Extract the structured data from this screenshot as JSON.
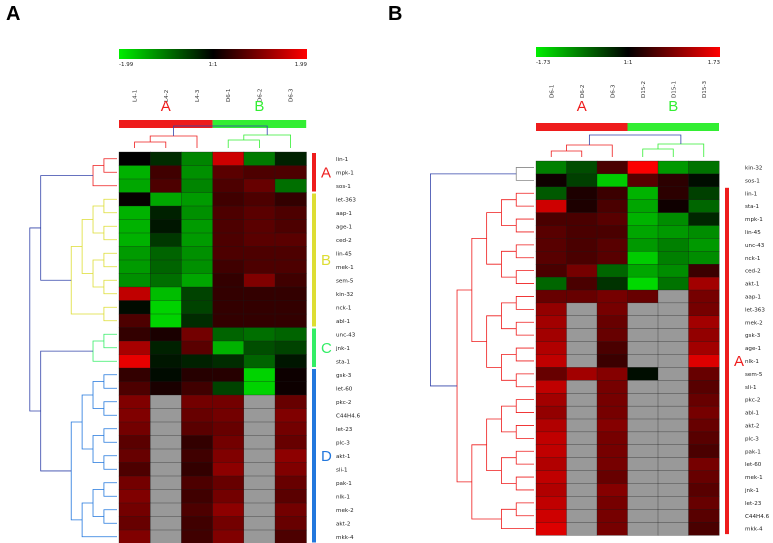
{
  "chart_data": [
    {
      "type": "heatmap",
      "panel": "A",
      "color_scale": {
        "min": "-1.99",
        "mid": "1:1",
        "max": "1.99",
        "low_color": "#00dd00",
        "mid_color": "#000000",
        "high_color": "#ff0000",
        "missing_color": "#999999"
      },
      "columns": [
        "L4-1",
        "L4-2",
        "L4-3",
        "D6-1",
        "D6-2",
        "D6-3"
      ],
      "column_groups": [
        {
          "label": "A",
          "color": "#ee1c1c",
          "columns": [
            "L4-1",
            "L4-2",
            "L4-3"
          ]
        },
        {
          "label": "B",
          "color": "#33ee33",
          "columns": [
            "D6-1",
            "D6-2",
            "D6-3"
          ]
        }
      ],
      "rows": [
        "lin-1",
        "mpk-1",
        "sos-1",
        "let-363",
        "aap-1",
        "age-1",
        "ced-2",
        "lin-45",
        "mek-1",
        "sem-5",
        "kin-32",
        "nck-1",
        "abl-1",
        "unc-43",
        "jnk-1",
        "sta-1",
        "gsk-3",
        "let-60",
        "pkc-2",
        "C44H4.6",
        "let-23",
        "plc-3",
        "akt-1",
        "sli-1",
        "pak-1",
        "nlk-1",
        "mek-2",
        "akt-2",
        "mkk-4"
      ],
      "row_clusters": [
        {
          "label": "A",
          "color": "#ee1c1c",
          "rows": [
            "lin-1",
            "mpk-1",
            "sos-1"
          ]
        },
        {
          "label": "B",
          "color": "#dddd33",
          "rows": [
            "let-363",
            "aap-1",
            "age-1",
            "ced-2",
            "lin-45",
            "mek-1",
            "sem-5",
            "kin-32",
            "nck-1",
            "abl-1"
          ]
        },
        {
          "label": "C",
          "color": "#33ee66",
          "rows": [
            "unc-43",
            "jnk-1",
            "sta-1"
          ]
        },
        {
          "label": "D",
          "color": "#2277dd",
          "rows": [
            "gsk-3",
            "let-60",
            "pkc-2",
            "C44H4.6",
            "let-23",
            "plc-3",
            "akt-1",
            "sli-1",
            "pak-1",
            "nlk-1",
            "mek-2",
            "akt-2",
            "mkk-4"
          ]
        }
      ],
      "values": [
        [
          0.0,
          -0.4,
          -1.2,
          1.6,
          -1.1,
          -0.3
        ],
        [
          -1.6,
          0.5,
          -1.3,
          0.7,
          0.6,
          0.6
        ],
        [
          -1.5,
          0.6,
          -1.2,
          0.6,
          0.8,
          -1.0
        ],
        [
          0.05,
          -1.5,
          -1.4,
          0.5,
          0.6,
          0.4
        ],
        [
          -1.6,
          -0.3,
          -1.3,
          0.6,
          0.7,
          0.6
        ],
        [
          -1.6,
          -0.2,
          -1.4,
          0.6,
          0.7,
          0.6
        ],
        [
          -1.6,
          -0.5,
          -1.4,
          0.6,
          0.7,
          0.7
        ],
        [
          -1.4,
          -0.9,
          -1.3,
          0.6,
          0.6,
          0.6
        ],
        [
          -1.4,
          -0.9,
          -1.3,
          0.5,
          0.6,
          0.6
        ],
        [
          -1.3,
          -1.0,
          -1.5,
          0.4,
          1.0,
          0.5
        ],
        [
          1.5,
          -1.7,
          -0.6,
          0.4,
          0.4,
          0.4
        ],
        [
          -0.1,
          -1.9,
          -0.6,
          0.4,
          0.4,
          0.4
        ],
        [
          0.6,
          -1.9,
          -0.4,
          0.4,
          0.4,
          0.4
        ],
        [
          0.4,
          0.2,
          0.9,
          -0.9,
          -1.0,
          -0.9
        ],
        [
          1.3,
          -0.3,
          0.7,
          -1.6,
          -0.7,
          -0.6
        ],
        [
          1.8,
          -0.2,
          -0.3,
          -0.4,
          -0.9,
          -0.2
        ],
        [
          0.4,
          -0.1,
          0.3,
          0.3,
          -1.9,
          0.1
        ],
        [
          0.6,
          0.2,
          0.5,
          -0.6,
          -1.9,
          0.1
        ],
        [
          1.0,
          null,
          0.9,
          0.9,
          null,
          0.8
        ],
        [
          1.0,
          null,
          0.8,
          0.9,
          null,
          1.0
        ],
        [
          0.9,
          null,
          0.7,
          0.8,
          null,
          0.9
        ],
        [
          0.7,
          null,
          0.4,
          0.9,
          null,
          0.8
        ],
        [
          0.8,
          null,
          0.5,
          1.0,
          null,
          1.1
        ],
        [
          0.6,
          null,
          0.4,
          1.1,
          null,
          1.0
        ],
        [
          0.9,
          null,
          0.6,
          0.8,
          null,
          0.8
        ],
        [
          1.0,
          null,
          0.5,
          0.9,
          null,
          0.7
        ],
        [
          0.9,
          null,
          0.6,
          1.1,
          null,
          0.9
        ],
        [
          0.8,
          null,
          0.5,
          0.9,
          null,
          0.8
        ],
        [
          1.0,
          null,
          0.5,
          1.0,
          null,
          0.6
        ]
      ]
    },
    {
      "type": "heatmap",
      "panel": "B",
      "color_scale": {
        "min": "-1.73",
        "mid": "1:1",
        "max": "1.73",
        "low_color": "#00dd00",
        "mid_color": "#000000",
        "high_color": "#ff0000",
        "missing_color": "#999999"
      },
      "columns": [
        "D6-1",
        "D6-2",
        "D6-3",
        "D15-2",
        "D15-1",
        "D15-3"
      ],
      "column_groups": [
        {
          "label": "A",
          "color": "#ee1c1c",
          "columns": [
            "D6-1",
            "D6-2",
            "D6-3"
          ]
        },
        {
          "label": "B",
          "color": "#33ee33",
          "columns": [
            "D15-2",
            "D15-1",
            "D15-3"
          ]
        }
      ],
      "rows": [
        "kin-32",
        "sos-1",
        "lin-1",
        "sta-1",
        "mpk-1",
        "lin-45",
        "unc-43",
        "nck-1",
        "ced-2",
        "akt-1",
        "aap-1",
        "let-363",
        "mek-2",
        "gsk-3",
        "age-1",
        "nlk-1",
        "sem-5",
        "sli-1",
        "pkc-2",
        "abl-1",
        "akt-2",
        "plc-3",
        "pak-1",
        "let-60",
        "mek-1",
        "jnk-1",
        "let-23",
        "C44H4.6",
        "mkk-4"
      ],
      "row_clusters": [
        {
          "label": "A",
          "color": "#ee1c1c",
          "rows": [
            "lin-1",
            "sta-1",
            "mpk-1",
            "lin-45",
            "unc-43",
            "nck-1",
            "ced-2",
            "akt-1",
            "aap-1",
            "let-363",
            "mek-2",
            "gsk-3",
            "age-1",
            "nlk-1",
            "sem-5",
            "sli-1",
            "pkc-2",
            "abl-1",
            "akt-2",
            "plc-3",
            "pak-1",
            "let-60",
            "mek-1",
            "jnk-1",
            "let-23",
            "C44H4.6",
            "mkk-4"
          ]
        }
      ],
      "values": [
        [
          -1.0,
          -0.6,
          0.5,
          1.7,
          -1.2,
          -0.9
        ],
        [
          0.1,
          -0.5,
          -1.6,
          0.6,
          0.3,
          -0.1
        ],
        [
          -0.7,
          0.2,
          0.4,
          -1.4,
          0.3,
          -0.5
        ],
        [
          1.4,
          0.2,
          0.5,
          -1.3,
          0.1,
          -0.8
        ],
        [
          0.5,
          0.5,
          0.6,
          -1.4,
          -1.1,
          -0.3
        ],
        [
          0.6,
          0.5,
          0.5,
          -1.3,
          -1.2,
          -1.1
        ],
        [
          0.6,
          0.5,
          0.6,
          -1.2,
          -1.0,
          -1.2
        ],
        [
          0.6,
          0.5,
          0.6,
          -1.6,
          -1.0,
          -1.1
        ],
        [
          0.5,
          0.8,
          -0.8,
          -1.3,
          -1.1,
          0.4
        ],
        [
          -0.8,
          0.5,
          -0.4,
          -1.7,
          -0.9,
          1.1
        ],
        [
          0.7,
          0.7,
          0.8,
          0.7,
          null,
          0.8
        ],
        [
          1.0,
          null,
          0.8,
          null,
          null,
          0.8
        ],
        [
          1.1,
          null,
          0.7,
          null,
          null,
          1.1
        ],
        [
          1.1,
          null,
          0.7,
          null,
          null,
          1.0
        ],
        [
          1.2,
          null,
          0.5,
          null,
          null,
          1.1
        ],
        [
          1.3,
          null,
          0.4,
          null,
          null,
          1.5
        ],
        [
          0.7,
          1.1,
          0.9,
          -0.1,
          null,
          0.7
        ],
        [
          1.3,
          null,
          0.8,
          null,
          null,
          0.6
        ],
        [
          1.1,
          null,
          0.8,
          null,
          null,
          0.7
        ],
        [
          1.0,
          null,
          0.8,
          null,
          null,
          0.8
        ],
        [
          1.2,
          null,
          0.9,
          null,
          null,
          0.7
        ],
        [
          1.3,
          null,
          0.8,
          null,
          null,
          0.6
        ],
        [
          1.3,
          null,
          0.8,
          null,
          null,
          0.5
        ],
        [
          1.2,
          null,
          0.8,
          null,
          null,
          0.8
        ],
        [
          1.3,
          null,
          0.7,
          null,
          null,
          0.7
        ],
        [
          1.2,
          null,
          0.9,
          null,
          null,
          0.6
        ],
        [
          1.3,
          null,
          0.8,
          null,
          null,
          0.7
        ],
        [
          1.4,
          null,
          0.8,
          null,
          null,
          0.6
        ],
        [
          1.5,
          null,
          0.8,
          null,
          null,
          0.5
        ]
      ]
    }
  ]
}
